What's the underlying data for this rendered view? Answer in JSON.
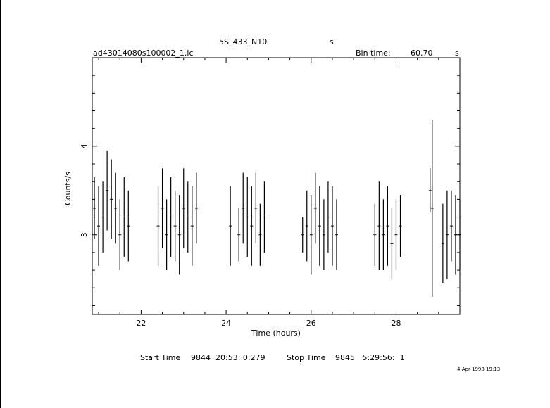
{
  "header": {
    "object_name": "5S_433_N10",
    "object_suffix": "s",
    "file_name": "ad43014080s100002_1.lc",
    "bin_label": "Bin time:",
    "bin_value": "60.70",
    "bin_unit": "s"
  },
  "footer": {
    "start_label": "Start Time",
    "start_value": "9844  20:53: 0:279",
    "stop_label": "Stop Time",
    "stop_value": "9845   5:29:56:  1",
    "timestamp": "4-Apr-1998 19:13"
  },
  "chart_data": {
    "type": "line",
    "xlabel": "Time (hours)",
    "ylabel": "Counts/s",
    "xlim": [
      20.85,
      29.5
    ],
    "ylim": [
      2.1,
      5.0
    ],
    "x_ticks": [
      22,
      24,
      26,
      28
    ],
    "y_ticks": [
      3,
      4
    ],
    "color": "#000000",
    "series": [
      {
        "x": [
          20.9,
          21.0,
          21.1,
          21.2,
          21.3,
          21.4,
          21.5,
          21.6,
          21.7,
          22.4,
          22.5,
          22.6,
          22.7,
          22.8,
          22.9,
          23.0,
          23.1,
          23.2,
          23.3,
          24.1,
          24.3,
          24.4,
          24.5,
          24.6,
          24.7,
          24.8,
          24.9,
          25.8,
          25.9,
          26.0,
          26.1,
          26.2,
          26.3,
          26.4,
          26.5,
          26.6,
          27.5,
          27.6,
          27.7,
          27.8,
          27.9,
          28.0,
          28.1,
          28.8,
          28.85,
          29.1,
          29.2,
          29.3,
          29.4,
          29.5
        ],
        "y": [
          3.3,
          3.1,
          3.2,
          3.5,
          3.4,
          3.3,
          3.0,
          3.2,
          3.1,
          3.1,
          3.3,
          3.0,
          3.2,
          3.1,
          3.0,
          3.3,
          3.2,
          3.1,
          3.3,
          3.1,
          3.0,
          3.3,
          3.2,
          3.1,
          3.3,
          3.0,
          3.2,
          3.0,
          3.1,
          3.0,
          3.3,
          3.1,
          3.0,
          3.2,
          3.1,
          3.0,
          3.0,
          3.1,
          3.0,
          3.1,
          2.9,
          3.0,
          3.1,
          3.5,
          3.3,
          2.9,
          3.0,
          3.1,
          3.0,
          3.0
        ],
        "err": [
          0.35,
          0.45,
          0.4,
          0.45,
          0.45,
          0.4,
          0.4,
          0.45,
          0.4,
          0.45,
          0.45,
          0.4,
          0.45,
          0.4,
          0.45,
          0.45,
          0.4,
          0.45,
          0.4,
          0.45,
          0.3,
          0.4,
          0.45,
          0.45,
          0.4,
          0.35,
          0.4,
          0.2,
          0.4,
          0.45,
          0.4,
          0.45,
          0.4,
          0.4,
          0.45,
          0.4,
          0.35,
          0.5,
          0.4,
          0.45,
          0.4,
          0.4,
          0.35,
          0.25,
          1.0,
          0.45,
          0.5,
          0.4,
          0.45,
          0.4
        ]
      }
    ]
  }
}
